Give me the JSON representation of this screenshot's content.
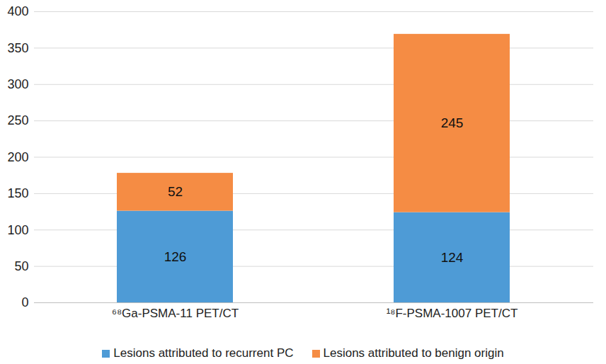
{
  "chart_data": {
    "type": "bar",
    "categories": [
      "⁶⁸Ga-PSMA-11 PET/CT",
      "¹⁸F-PSMA-1007 PET/CT"
    ],
    "series": [
      {
        "name": "Lesions attributed to recurrent PC",
        "color": "#4e9bd6",
        "values": [
          126,
          124
        ]
      },
      {
        "name": "Lesions attributed to benign origin",
        "color": "#f58c44",
        "values": [
          52,
          245
        ]
      }
    ],
    "stacked": true,
    "data_labels": true,
    "ylim": [
      0,
      400
    ],
    "yticks": [
      0,
      50,
      100,
      150,
      200,
      250,
      300,
      350,
      400
    ],
    "grid": true,
    "legend": "bottom"
  }
}
